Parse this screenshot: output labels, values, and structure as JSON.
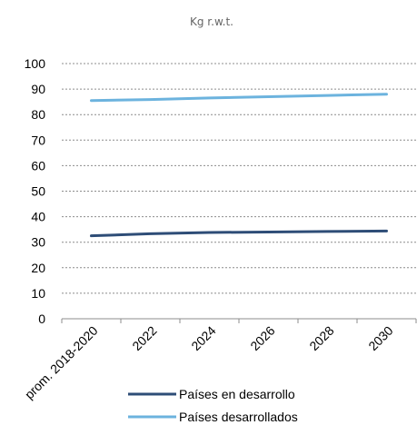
{
  "chart_data": {
    "type": "line",
    "unit_label": "Kg r.w.t.",
    "categories": [
      "prom. 2018-2020",
      "2022",
      "2024",
      "2026",
      "2028",
      "2030"
    ],
    "ylim": [
      0,
      100
    ],
    "yticks": [
      "0",
      "10",
      "20",
      "30",
      "40",
      "50",
      "60",
      "70",
      "80",
      "90",
      "100"
    ],
    "grid": true,
    "legend_position": "bottom",
    "series": [
      {
        "name": "Países en desarrollo",
        "color": "#2e4d77",
        "values": [
          32.5,
          33.3,
          33.8,
          34.0,
          34.2,
          34.4
        ]
      },
      {
        "name": "Países desarrollados",
        "color": "#6cb3de",
        "values": [
          85.5,
          85.9,
          86.5,
          87.0,
          87.5,
          88.0
        ]
      }
    ]
  }
}
